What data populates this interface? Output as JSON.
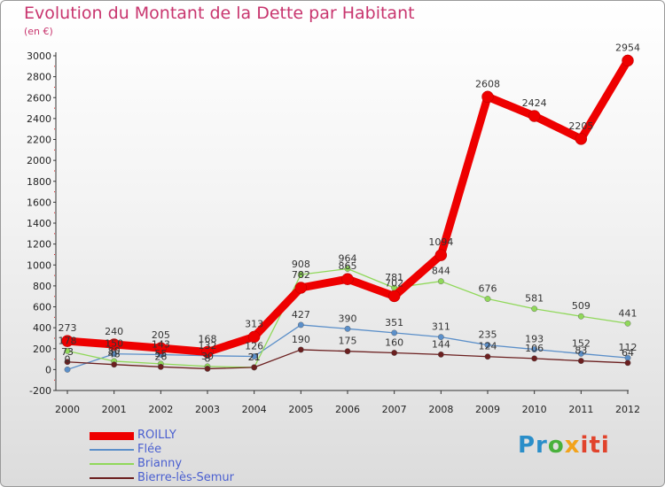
{
  "title": "Evolution du Montant de la Dette par Habitant",
  "subtitle": "(en €)",
  "brand": {
    "p1": "Pr",
    "p2": "o",
    "p3": "x",
    "p4": "iti"
  },
  "chart_data": {
    "type": "line",
    "x": [
      "2000",
      "2001",
      "2002",
      "2003",
      "2004",
      "2005",
      "2006",
      "2007",
      "2008",
      "2009",
      "2010",
      "2011",
      "2012"
    ],
    "ylim": [
      -200,
      3000
    ],
    "yticks": [
      -200,
      0,
      200,
      400,
      600,
      800,
      1000,
      1200,
      1400,
      1600,
      1800,
      2000,
      2200,
      2400,
      2600,
      2800,
      3000
    ],
    "grid": false,
    "legend": "bottom-left",
    "series": [
      {
        "name": "ROILLY",
        "color": "#ee0000",
        "values": [
          273,
          240,
          205,
          168,
          313,
          782,
          865,
          702,
          1094,
          2608,
          2424,
          2205,
          2954
        ]
      },
      {
        "name": "Flée",
        "color": "#5b8fc9",
        "values": [
          0,
          150,
          143,
          132,
          126,
          427,
          390,
          351,
          311,
          235,
          193,
          152,
          112
        ]
      },
      {
        "name": "Brianny",
        "color": "#90d85a",
        "values": [
          178,
          80,
          55,
          30,
          21,
          908,
          964,
          781,
          844,
          676,
          581,
          509,
          441
        ]
      },
      {
        "name": "Bierre-lès-Semur",
        "color": "#6b1f1f",
        "values": [
          73,
          48,
          26,
          8,
          21,
          190,
          175,
          160,
          144,
          124,
          106,
          83,
          64
        ]
      }
    ]
  }
}
